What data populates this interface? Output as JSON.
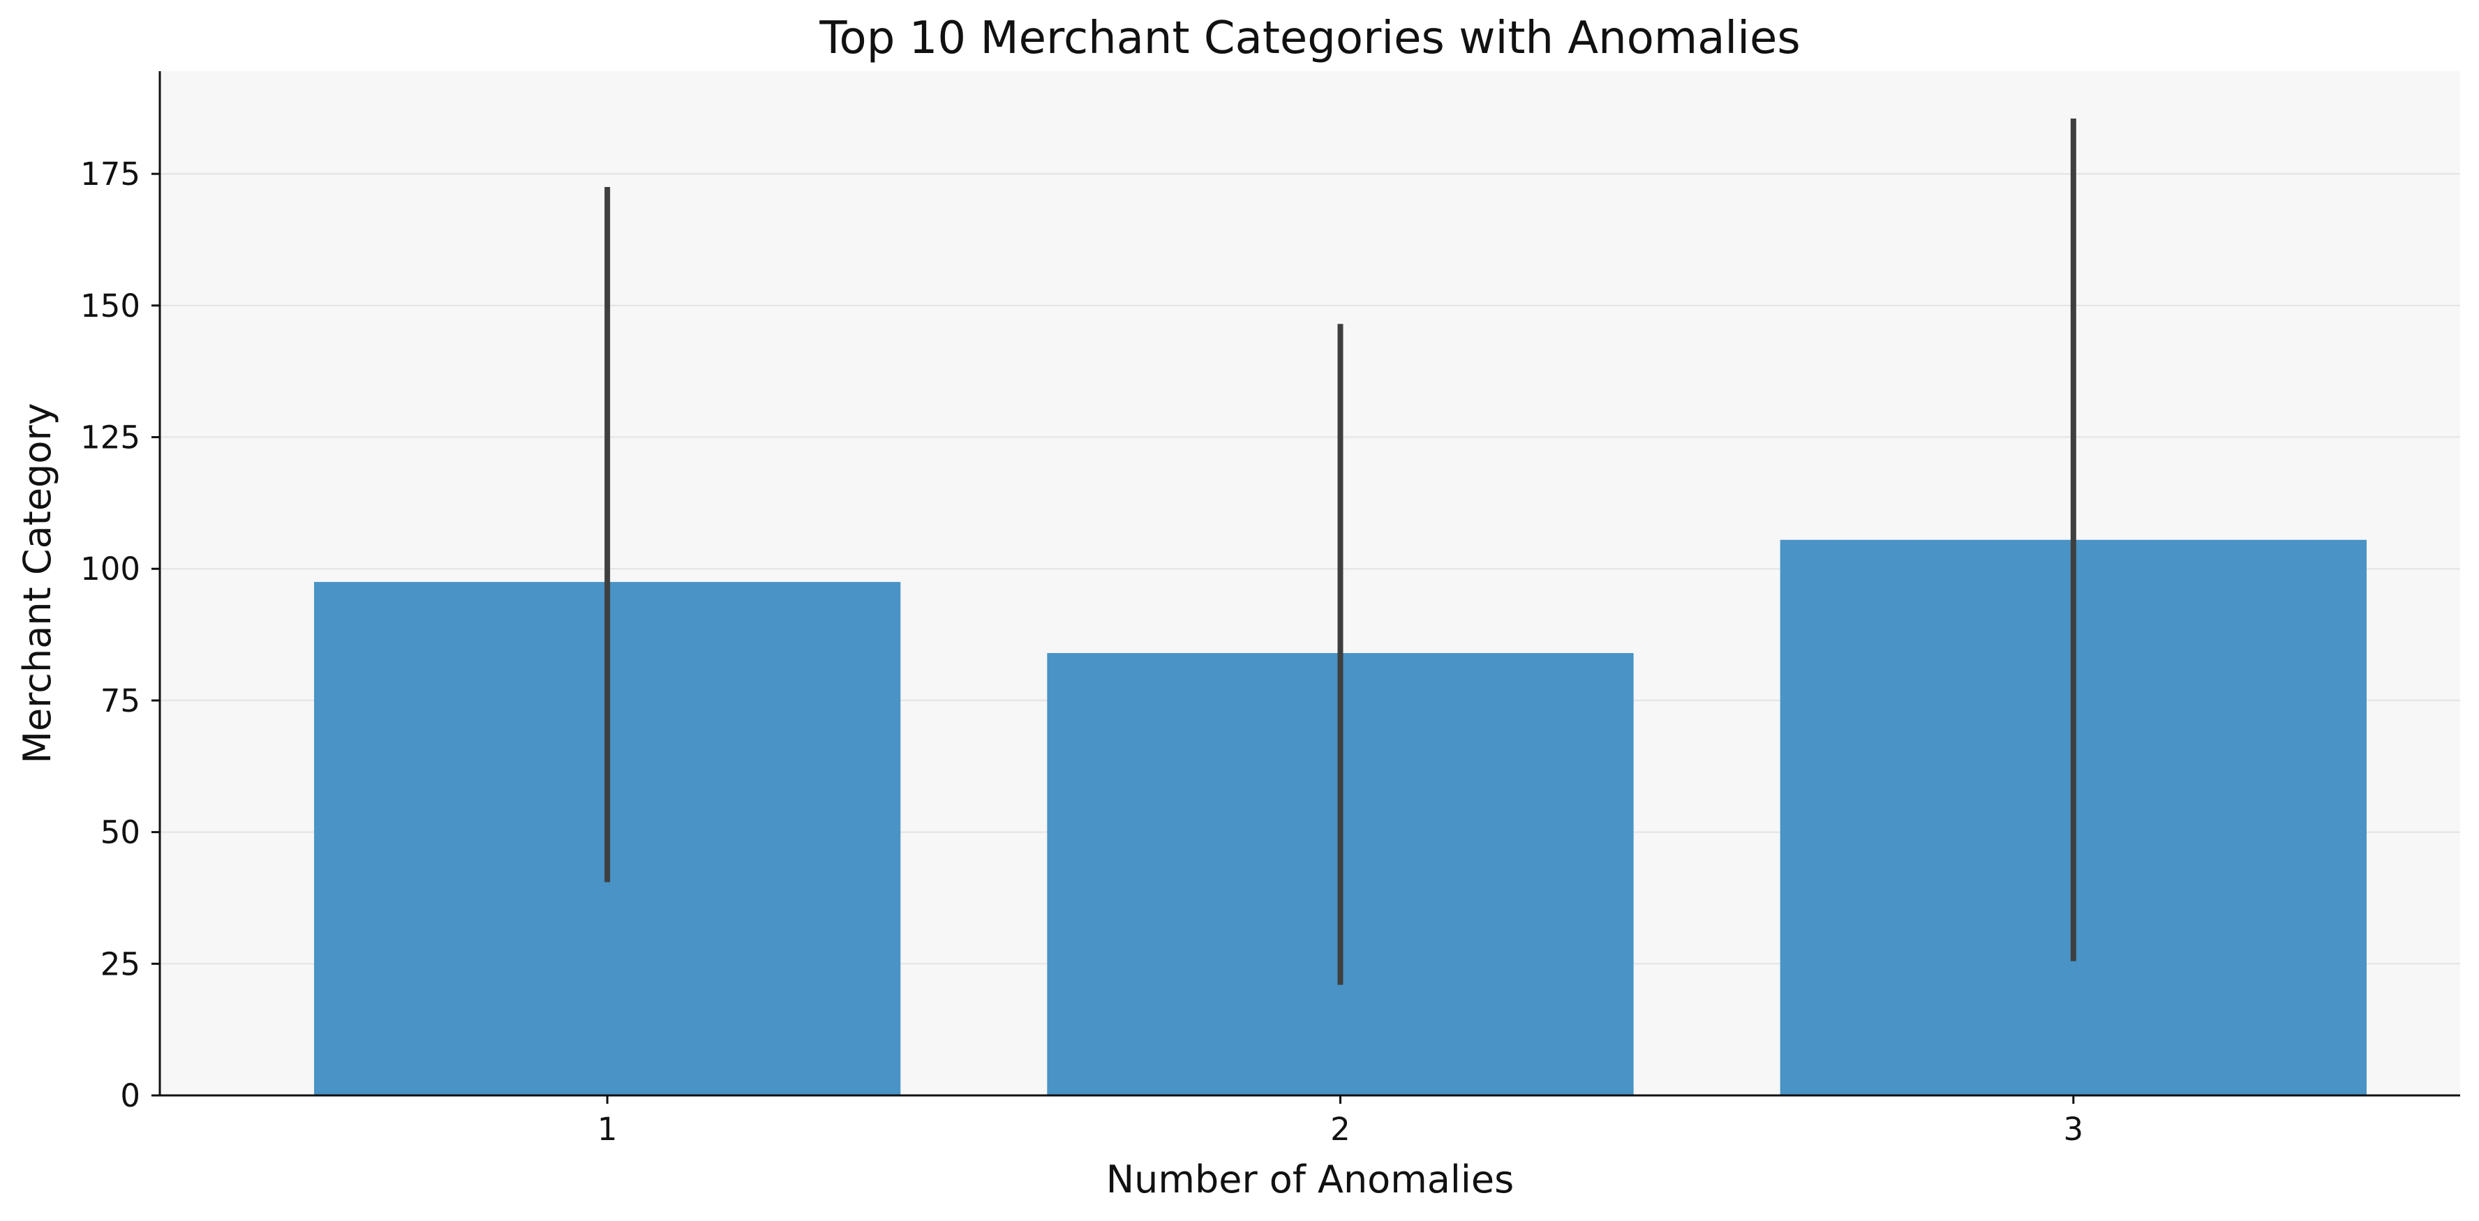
{
  "chart_data": {
    "type": "bar",
    "title": "Top 10 Merchant Categories with Anomalies",
    "xlabel": "Number of Anomalies",
    "ylabel": "Merchant Category",
    "categories": [
      "1",
      "2",
      "3"
    ],
    "values": [
      97.5,
      84,
      105.5
    ],
    "error_bars": [
      {
        "low": 40.5,
        "high": 172.5
      },
      {
        "low": 21,
        "high": 146.5
      },
      {
        "low": 25.5,
        "high": 185.5
      }
    ],
    "ylim": [
      0,
      194.5
    ],
    "yticks": [
      "0",
      "25",
      "50",
      "75",
      "100",
      "125",
      "150",
      "175"
    ],
    "grid": "y",
    "colors": {
      "bar": "#4993c6",
      "error_bar": "#3f3f3f",
      "plot_background": "#f7f7f7",
      "grid": "#e3e3e3",
      "axis": "#111111"
    }
  }
}
